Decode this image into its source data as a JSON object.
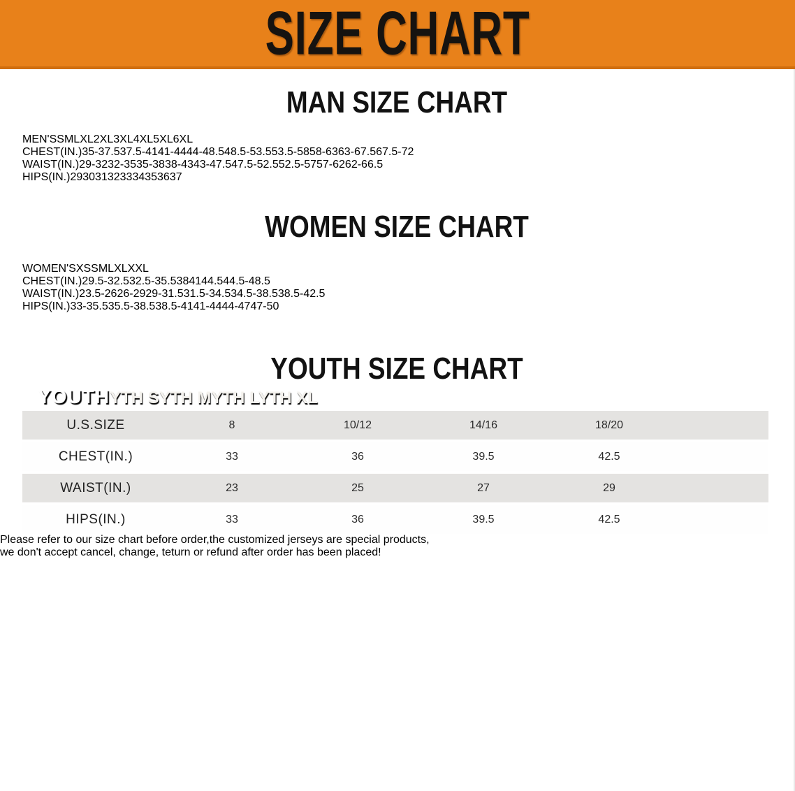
{
  "banner": {
    "title": "SIZE CHART",
    "bg_color": "#e8811a",
    "text_color": "#161310"
  },
  "sections": [
    {
      "title": "MAN SIZE CHART",
      "header_label": "MEN'S",
      "columns": [
        "S",
        "M",
        "L",
        "XL",
        "2XL",
        "3XL",
        "4XL",
        "5XL",
        "6XL"
      ],
      "rows": [
        {
          "label": "CHEST(IN.)",
          "values": [
            "35-37.5",
            "37.5-41",
            "41-44",
            "44-48.5",
            "48.5-53.5",
            "53.5-58",
            "58-63",
            "63-67.5",
            "67.5-72"
          ]
        },
        {
          "label": "WAIST(IN.)",
          "values": [
            "29-32",
            "32-35",
            "35-38",
            "38-43",
            "43-47.5",
            "47.5-52.5",
            "52.5-57",
            "57-62",
            "62-66.5"
          ]
        },
        {
          "label": "HIPS(IN.)",
          "values": [
            "29",
            "30",
            "31",
            "32",
            "33",
            "34",
            "35",
            "36",
            "37"
          ]
        }
      ]
    },
    {
      "title": "WOMEN SIZE CHART",
      "header_label": "WOMEN'S",
      "columns": [
        "XS",
        "S",
        "M",
        "L",
        "XL",
        "XXL"
      ],
      "rows": [
        {
          "label": "CHEST(IN.)",
          "values": [
            "29.5-32.5",
            "32.5-35.5",
            "38",
            "41",
            "44.5",
            "44.5-48.5"
          ]
        },
        {
          "label": "WAIST(IN.)",
          "values": [
            "23.5-26",
            "26-29",
            "29-31.5",
            "31.5-34.5",
            "34.5-38.5",
            "38.5-42.5"
          ]
        },
        {
          "label": "HIPS(IN.)",
          "values": [
            "33-35.5",
            "35.5-38.5",
            "38.5-41",
            "41-44",
            "44-47",
            "47-50"
          ]
        }
      ]
    },
    {
      "title": "YOUTH SIZE CHART",
      "header_label": "YOUTH",
      "columns": [
        "YTH S",
        "YTH M",
        "YTH L",
        "YTH XL"
      ],
      "rows": [
        {
          "label": "U.S.SIZE",
          "values": [
            "8",
            "10/12",
            "14/16",
            "18/20"
          ]
        },
        {
          "label": "CHEST(IN.)",
          "values": [
            "33",
            "36",
            "39.5",
            "42.5"
          ]
        },
        {
          "label": "WAIST(IN.)",
          "values": [
            "23",
            "25",
            "27",
            "29"
          ]
        },
        {
          "label": "HIPS(IN.)",
          "values": [
            "33",
            "36",
            "39.5",
            "42.5"
          ]
        }
      ]
    }
  ],
  "disclaimer": {
    "line1": "Please refer to our size chart before order,the customized jerseys are special products,",
    "line2": "we don't accept cancel, change, teturn or refund after order has been placed!",
    "color": "#a93028"
  }
}
